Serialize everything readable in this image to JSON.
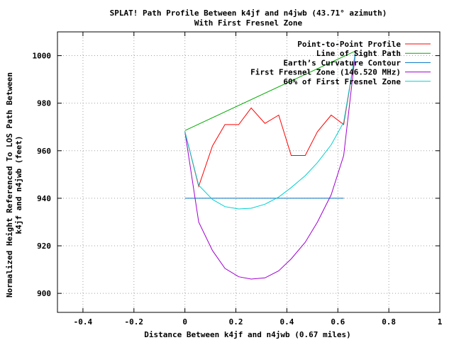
{
  "chart_data": {
    "type": "line",
    "title": "SPLAT! Path Profile Between k4jf and n4jwb (43.71° azimuth)",
    "subtitle": "With First Fresnel Zone",
    "xlabel": "Distance Between k4jf and n4jwb (0.67 miles)",
    "ylabel": [
      "Normalized Height Referenced To LOS Path Between",
      "k4jf and n4jwb (feet)"
    ],
    "xlim": [
      -0.5,
      1
    ],
    "ylim": [
      892,
      1010
    ],
    "xticks": [
      -0.4,
      -0.2,
      0,
      0.2,
      0.4,
      0.6,
      0.8,
      1
    ],
    "xtick_labels": [
      "-0.4",
      "-0.2",
      "0",
      "0.2",
      "0.4",
      "0.6",
      "0.8",
      "1"
    ],
    "yticks": [
      900,
      920,
      940,
      960,
      980,
      1000
    ],
    "ytick_labels": [
      "900",
      "920",
      "940",
      "960",
      "980",
      "1000"
    ],
    "grid": true,
    "legend_position": "top-right",
    "series": [
      {
        "name": "Point-to-Point Profile",
        "color": "#ff0000",
        "x": [
          0,
          0.054,
          0.108,
          0.157,
          0.211,
          0.26,
          0.314,
          0.368,
          0.417,
          0.472,
          0.52,
          0.574,
          0.623,
          0.67
        ],
        "y": [
          968,
          945,
          962,
          971,
          971,
          978,
          971.5,
          975,
          958,
          958,
          968,
          975,
          971,
          1002
        ]
      },
      {
        "name": "Line of Sight Path",
        "color": "#00aa00",
        "x": [
          0,
          0.67
        ],
        "y": [
          968.5,
          1002
        ]
      },
      {
        "name": "Earth’s Curvature Contour",
        "color": "#0070c0",
        "x": [
          0,
          0.1,
          0.2,
          0.3,
          0.4,
          0.5,
          0.6,
          0.623
        ],
        "y": [
          940,
          940,
          940,
          940,
          940,
          940,
          940,
          940
        ]
      },
      {
        "name": "First Fresnel Zone (146.520 MHz)",
        "color": "#a000d0",
        "x": [
          0,
          0.054,
          0.108,
          0.157,
          0.211,
          0.26,
          0.314,
          0.368,
          0.417,
          0.472,
          0.52,
          0.574,
          0.623,
          0.67
        ],
        "y": [
          968,
          930,
          918,
          910.5,
          907,
          906,
          906.5,
          909.5,
          914.5,
          921.5,
          930,
          941.5,
          958,
          1002
        ]
      },
      {
        "name": "60% of First Fresnel Zone",
        "color": "#00d0d0",
        "x": [
          0,
          0.054,
          0.108,
          0.157,
          0.211,
          0.26,
          0.314,
          0.368,
          0.417,
          0.472,
          0.52,
          0.574,
          0.623,
          0.67
        ],
        "y": [
          968,
          945.5,
          939.5,
          936.5,
          935.5,
          935.8,
          937.5,
          940.5,
          944.5,
          949.5,
          955,
          962.5,
          972,
          1002
        ]
      }
    ]
  }
}
